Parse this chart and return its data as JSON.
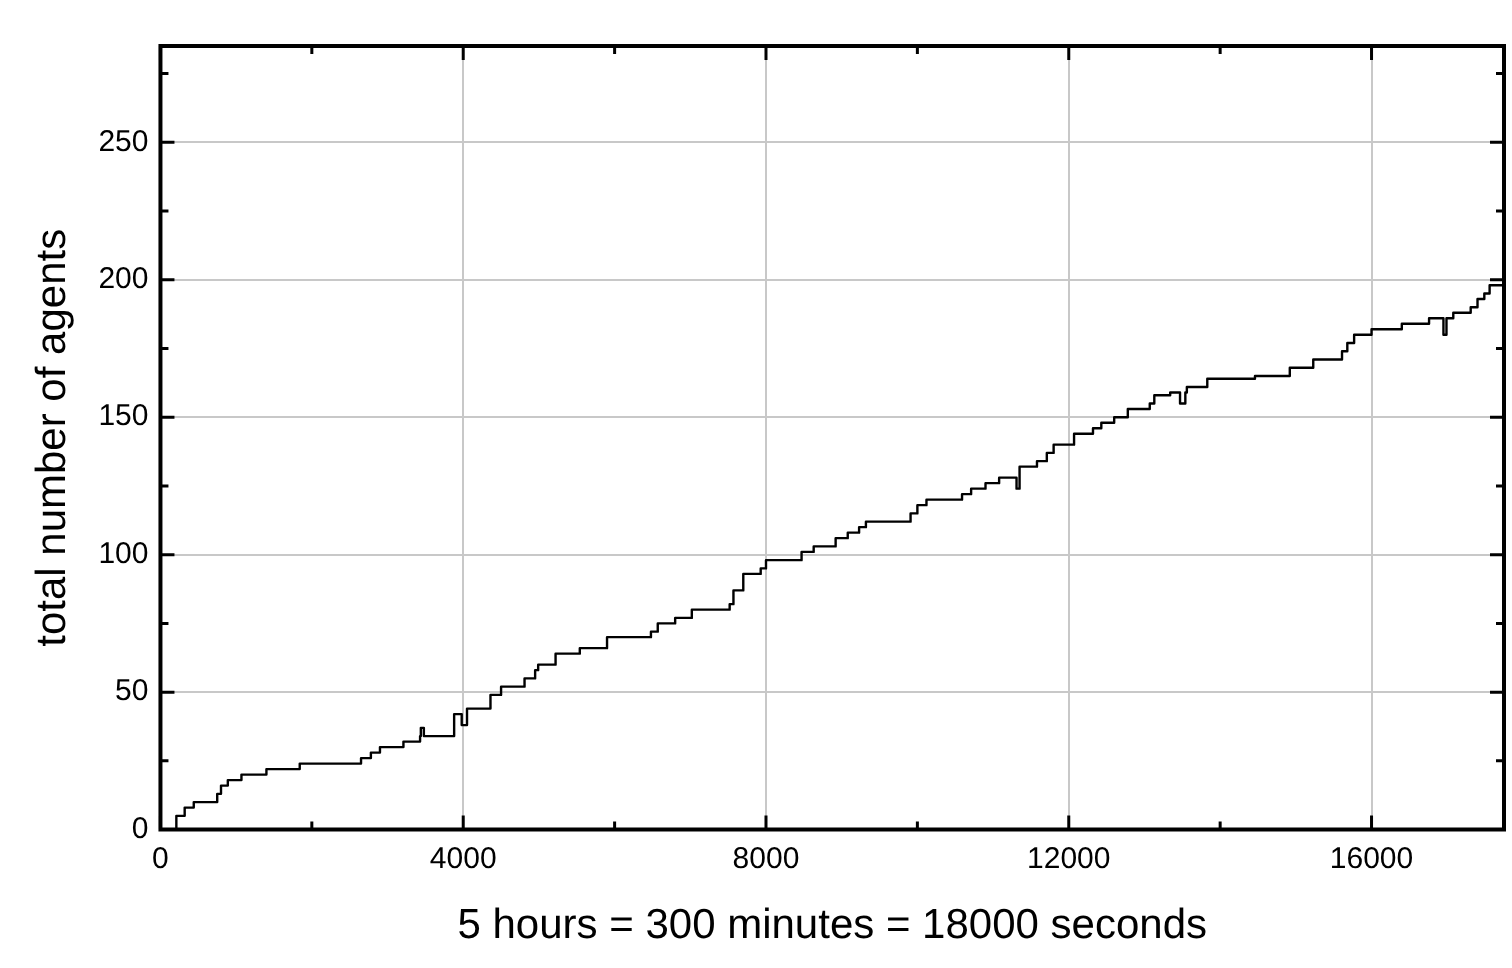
{
  "chart_data": {
    "type": "step",
    "xlabel": "5 hours = 300 minutes = 18000 seconds",
    "ylabel": "total number of agents",
    "xlim": [
      0,
      17750
    ],
    "ylim": [
      0,
      285
    ],
    "xticks": [
      0,
      {
        "value": 2000,
        "label": null
      },
      4000,
      {
        "value": 6000,
        "label": null
      },
      8000,
      {
        "value": 10000,
        "label": null
      },
      12000,
      {
        "value": 14000,
        "label": null
      },
      16000
    ],
    "yticks": [
      0,
      {
        "value": 25,
        "label": null
      },
      50,
      {
        "value": 75,
        "label": null
      },
      100,
      {
        "value": 125,
        "label": null
      },
      150,
      {
        "value": 175,
        "label": null
      },
      200,
      {
        "value": 225,
        "label": null
      },
      250,
      {
        "value": 275,
        "label": null
      }
    ],
    "grid": true,
    "legend": false,
    "marker": "none",
    "line_style": "solid",
    "series": [
      {
        "color": "#000000",
        "x": [
          150,
          210,
          320,
          440,
          750,
          800,
          890,
          1070,
          1400,
          1840,
          2650,
          2780,
          2900,
          3210,
          3430,
          3440,
          3480,
          3880,
          3980,
          4050,
          4360,
          4500,
          4810,
          4950,
          4990,
          5220,
          5540,
          5900,
          6480,
          6570,
          6800,
          7020,
          7520,
          7570,
          7700,
          7930,
          8000,
          8470,
          8630,
          8920,
          9080,
          9230,
          9320,
          9910,
          10000,
          10120,
          10590,
          10710,
          10900,
          11080,
          11310,
          11350,
          11580,
          11710,
          11800,
          12070,
          12320,
          12430,
          12600,
          12780,
          13070,
          13130,
          13340,
          13470,
          13540,
          13560,
          13830,
          14460,
          14920,
          15230,
          15610,
          15680,
          15770,
          16000,
          16400,
          16760,
          16950,
          16990,
          17040,
          17080,
          17310,
          17400,
          17490,
          17560,
          17740
        ],
        "values": [
          0,
          5,
          8,
          10,
          13,
          16,
          18,
          20,
          22,
          24,
          26,
          28,
          30,
          32,
          34,
          37,
          34,
          42,
          38,
          44,
          49,
          52,
          55,
          58,
          60,
          64,
          66,
          70,
          72,
          75,
          77,
          80,
          82,
          87,
          93,
          95,
          98,
          101,
          103,
          106,
          108,
          110,
          112,
          115,
          118,
          120,
          122,
          124,
          126,
          128,
          124,
          132,
          134,
          137,
          140,
          144,
          146,
          148,
          150,
          153,
          155,
          158,
          159,
          155,
          159,
          161,
          164,
          165,
          168,
          171,
          174,
          177,
          180,
          182,
          184,
          186,
          180,
          186,
          186,
          188,
          190,
          193,
          195,
          198,
          198
        ]
      }
    ]
  }
}
